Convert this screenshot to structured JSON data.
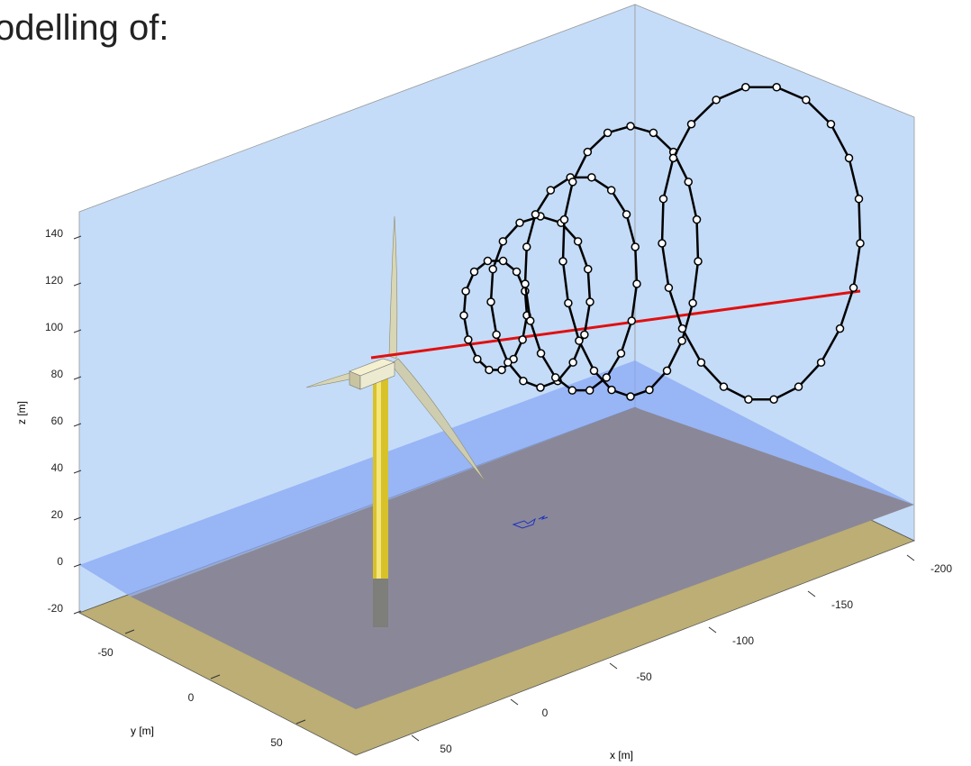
{
  "header": {
    "title": "odelling of:"
  },
  "axes": {
    "z": {
      "label": "z [m]",
      "ticks": [
        140,
        120,
        100,
        80,
        60,
        40,
        20,
        0,
        -20
      ]
    },
    "y": {
      "label": "y [m]",
      "ticks": [
        -50,
        0,
        50
      ]
    },
    "x": {
      "label": "x [m]",
      "ticks": [
        -200,
        -150,
        -100,
        -50,
        0,
        50
      ]
    }
  }
}
